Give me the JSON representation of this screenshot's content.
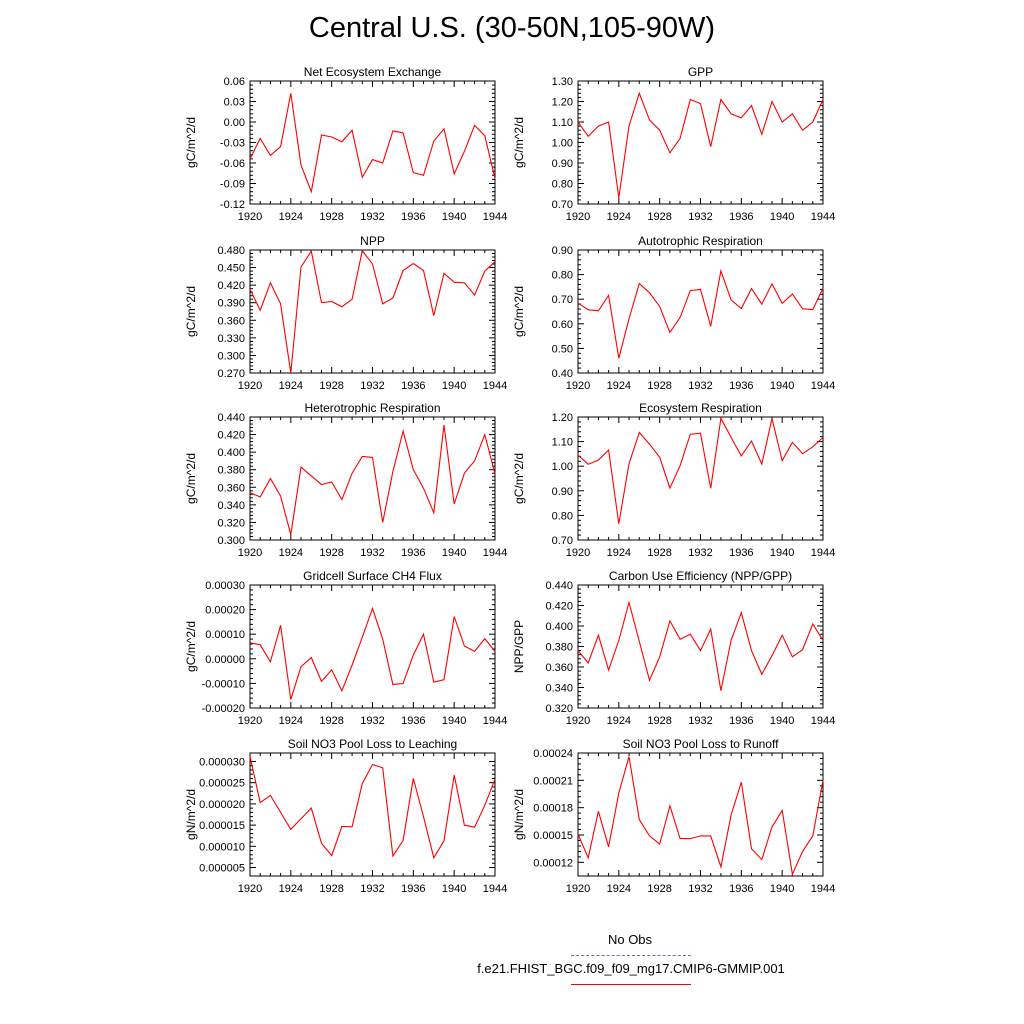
{
  "title": "Central U.S. (30-50N,105-90W)",
  "colors": {
    "series": "#ff0000",
    "obs": "#6666dd",
    "axis": "#000000"
  },
  "legend": {
    "obs_label": "No Obs",
    "model_label": "f.e21.FHIST_BGC.f09_f09_mg17.CMIP6-GMMIP.001"
  },
  "chart_data": [
    {
      "type": "line",
      "title": "Net Ecosystem Exchange",
      "xlabel": "",
      "ylabel": "gC/m^2/d",
      "xlim": [
        1920,
        1944
      ],
      "ylim": [
        -0.12,
        0.06
      ],
      "xticks": [
        "1920",
        "1924",
        "1928",
        "1932",
        "1936",
        "1940",
        "1944"
      ],
      "yticks": [
        "0.06",
        "0.03",
        "0.00",
        "-0.03",
        "-0.06",
        "-0.09",
        "-0.12"
      ],
      "x": [
        1920,
        1921,
        1922,
        1923,
        1924,
        1925,
        1926,
        1927,
        1928,
        1929,
        1930,
        1931,
        1932,
        1933,
        1934,
        1935,
        1936,
        1937,
        1938,
        1939,
        1940,
        1941,
        1942,
        1943,
        1944
      ],
      "series": [
        {
          "values": [
            -0.054,
            -0.024,
            -0.049,
            -0.036,
            0.042,
            -0.063,
            -0.102,
            -0.019,
            -0.022,
            -0.029,
            -0.012,
            -0.081,
            -0.055,
            -0.06,
            -0.013,
            -0.016,
            -0.074,
            -0.078,
            -0.028,
            -0.01,
            -0.076,
            -0.043,
            -0.005,
            -0.02,
            -0.083
          ]
        }
      ]
    },
    {
      "type": "line",
      "title": "GPP",
      "xlabel": "",
      "ylabel": "gC/m^2/d",
      "xlim": [
        1920,
        1944
      ],
      "ylim": [
        0.7,
        1.3
      ],
      "xticks": [
        "1920",
        "1924",
        "1928",
        "1932",
        "1936",
        "1940",
        "1944"
      ],
      "yticks": [
        "1.30",
        "1.20",
        "1.10",
        "1.00",
        "0.90",
        "0.80",
        "0.70"
      ],
      "x": [
        1920,
        1921,
        1922,
        1923,
        1924,
        1925,
        1926,
        1927,
        1928,
        1929,
        1930,
        1931,
        1932,
        1933,
        1934,
        1935,
        1936,
        1937,
        1938,
        1939,
        1940,
        1941,
        1942,
        1943,
        1944
      ],
      "series": [
        {
          "values": [
            1.1,
            1.03,
            1.08,
            1.1,
            0.73,
            1.08,
            1.24,
            1.11,
            1.06,
            0.95,
            1.02,
            1.21,
            1.19,
            0.98,
            1.21,
            1.14,
            1.12,
            1.18,
            1.04,
            1.2,
            1.1,
            1.14,
            1.06,
            1.1,
            1.21
          ]
        }
      ]
    },
    {
      "type": "line",
      "title": "NPP",
      "xlabel": "",
      "ylabel": "gC/m^2/d",
      "xlim": [
        1920,
        1944
      ],
      "ylim": [
        0.27,
        0.48
      ],
      "xticks": [
        "1920",
        "1924",
        "1928",
        "1932",
        "1936",
        "1940",
        "1944"
      ],
      "yticks": [
        "0.480",
        "0.450",
        "0.420",
        "0.390",
        "0.360",
        "0.330",
        "0.300",
        "0.270"
      ],
      "x": [
        1920,
        1921,
        1922,
        1923,
        1924,
        1925,
        1926,
        1927,
        1928,
        1929,
        1930,
        1931,
        1932,
        1933,
        1934,
        1935,
        1936,
        1937,
        1938,
        1939,
        1940,
        1941,
        1942,
        1943,
        1944
      ],
      "series": [
        {
          "values": [
            0.413,
            0.377,
            0.424,
            0.388,
            0.27,
            0.451,
            0.478,
            0.39,
            0.392,
            0.383,
            0.396,
            0.479,
            0.456,
            0.388,
            0.398,
            0.445,
            0.457,
            0.445,
            0.368,
            0.44,
            0.425,
            0.424,
            0.403,
            0.444,
            0.46
          ]
        }
      ]
    },
    {
      "type": "line",
      "title": "Autotrophic Respiration",
      "xlabel": "",
      "ylabel": "gC/m^2/d",
      "xlim": [
        1920,
        1944
      ],
      "ylim": [
        0.4,
        0.9
      ],
      "xticks": [
        "1920",
        "1924",
        "1928",
        "1932",
        "1936",
        "1940",
        "1944"
      ],
      "yticks": [
        "0.90",
        "0.80",
        "0.70",
        "0.60",
        "0.50",
        "0.40"
      ],
      "x": [
        1920,
        1921,
        1922,
        1923,
        1924,
        1925,
        1926,
        1927,
        1928,
        1929,
        1930,
        1931,
        1932,
        1933,
        1934,
        1935,
        1936,
        1937,
        1938,
        1939,
        1940,
        1941,
        1942,
        1943,
        1944
      ],
      "series": [
        {
          "values": [
            0.685,
            0.657,
            0.653,
            0.716,
            0.46,
            0.62,
            0.764,
            0.726,
            0.67,
            0.565,
            0.626,
            0.735,
            0.74,
            0.59,
            0.815,
            0.697,
            0.662,
            0.743,
            0.68,
            0.762,
            0.683,
            0.721,
            0.661,
            0.658,
            0.745
          ]
        }
      ]
    },
    {
      "type": "line",
      "title": "Heterotrophic Respiration",
      "xlabel": "",
      "ylabel": "gC/m^2/d",
      "xlim": [
        1920,
        1944
      ],
      "ylim": [
        0.3,
        0.44
      ],
      "xticks": [
        "1920",
        "1924",
        "1928",
        "1932",
        "1936",
        "1940",
        "1944"
      ],
      "yticks": [
        "0.440",
        "0.420",
        "0.400",
        "0.380",
        "0.360",
        "0.340",
        "0.320",
        "0.300"
      ],
      "x": [
        1920,
        1921,
        1922,
        1923,
        1924,
        1925,
        1926,
        1927,
        1928,
        1929,
        1930,
        1931,
        1932,
        1933,
        1934,
        1935,
        1936,
        1937,
        1938,
        1939,
        1940,
        1941,
        1942,
        1943,
        1944
      ],
      "series": [
        {
          "values": [
            0.354,
            0.349,
            0.37,
            0.35,
            0.306,
            0.383,
            0.373,
            0.363,
            0.366,
            0.346,
            0.376,
            0.395,
            0.394,
            0.32,
            0.378,
            0.424,
            0.38,
            0.359,
            0.331,
            0.431,
            0.341,
            0.376,
            0.39,
            0.42,
            0.375
          ]
        }
      ]
    },
    {
      "type": "line",
      "title": "Ecosystem Respiration",
      "xlabel": "",
      "ylabel": "gC/m^2/d",
      "xlim": [
        1920,
        1944
      ],
      "ylim": [
        0.7,
        1.2
      ],
      "xticks": [
        "1920",
        "1924",
        "1928",
        "1932",
        "1936",
        "1940",
        "1944"
      ],
      "yticks": [
        "1.20",
        "1.10",
        "1.00",
        "0.90",
        "0.80",
        "0.70"
      ],
      "x": [
        1920,
        1921,
        1922,
        1923,
        1924,
        1925,
        1926,
        1927,
        1928,
        1929,
        1930,
        1931,
        1932,
        1933,
        1934,
        1935,
        1936,
        1937,
        1938,
        1939,
        1940,
        1941,
        1942,
        1943,
        1944
      ],
      "series": [
        {
          "values": [
            1.045,
            1.008,
            1.025,
            1.066,
            0.766,
            1.01,
            1.137,
            1.09,
            1.036,
            0.911,
            1.002,
            1.13,
            1.134,
            0.91,
            1.195,
            1.117,
            1.042,
            1.102,
            1.009,
            1.194,
            1.022,
            1.097,
            1.051,
            1.079,
            1.117
          ]
        }
      ]
    },
    {
      "type": "line",
      "title": "Gridcell Surface CH4 Flux",
      "xlabel": "",
      "ylabel": "gC/m^2/d",
      "xlim": [
        1920,
        1944
      ],
      "ylim": [
        -0.0002,
        0.0003
      ],
      "xticks": [
        "1920",
        "1924",
        "1928",
        "1932",
        "1936",
        "1940",
        "1944"
      ],
      "yticks": [
        "0.00030",
        "0.00020",
        "0.00010",
        "0.00000",
        "-0.00010",
        "-0.00020"
      ],
      "x": [
        1920,
        1921,
        1922,
        1923,
        1924,
        1925,
        1926,
        1927,
        1928,
        1929,
        1930,
        1931,
        1932,
        1933,
        1934,
        1935,
        1936,
        1937,
        1938,
        1939,
        1940,
        1941,
        1942,
        1943,
        1944
      ],
      "series": [
        {
          "values": [
            6.5e-05,
            5.7e-05,
            -1.2e-05,
            0.000136,
            -0.000165,
            -3.2e-05,
            5e-06,
            -9.2e-05,
            -4.5e-05,
            -0.00013,
            -2.5e-05,
            8.8e-05,
            0.000205,
            8e-05,
            -0.000105,
            -0.0001,
            1.5e-05,
            0.0001,
            -9.5e-05,
            -8.5e-05,
            0.000172,
            5.2e-05,
            3e-05,
            8.2e-05,
            3e-05
          ]
        }
      ]
    },
    {
      "type": "line",
      "title": "Carbon Use Efficiency (NPP/GPP)",
      "xlabel": "",
      "ylabel": "NPP/GPP",
      "xlim": [
        1920,
        1944
      ],
      "ylim": [
        0.32,
        0.44
      ],
      "xticks": [
        "1920",
        "1924",
        "1928",
        "1932",
        "1936",
        "1940",
        "1944"
      ],
      "yticks": [
        "0.440",
        "0.420",
        "0.400",
        "0.380",
        "0.360",
        "0.340",
        "0.320"
      ],
      "x": [
        1920,
        1921,
        1922,
        1923,
        1924,
        1925,
        1926,
        1927,
        1928,
        1929,
        1930,
        1931,
        1932,
        1933,
        1934,
        1935,
        1936,
        1937,
        1938,
        1939,
        1940,
        1941,
        1942,
        1943,
        1944
      ],
      "series": [
        {
          "values": [
            0.376,
            0.364,
            0.391,
            0.357,
            0.386,
            0.423,
            0.385,
            0.347,
            0.37,
            0.405,
            0.387,
            0.392,
            0.376,
            0.397,
            0.337,
            0.386,
            0.413,
            0.376,
            0.353,
            0.371,
            0.391,
            0.37,
            0.377,
            0.402,
            0.386
          ]
        }
      ]
    },
    {
      "type": "line",
      "title": "Soil NO3 Pool Loss to Leaching",
      "xlabel": "",
      "ylabel": "gN/m^2/d",
      "xlim": [
        1920,
        1944
      ],
      "ylim": [
        3e-06,
        3.2e-05
      ],
      "xticks": [
        "1920",
        "1924",
        "1928",
        "1932",
        "1936",
        "1940",
        "1944"
      ],
      "yticks": [
        "0.000030",
        "0.000025",
        "0.000020",
        "0.000015",
        "0.000010",
        "0.000005"
      ],
      "x": [
        1920,
        1921,
        1922,
        1923,
        1924,
        1925,
        1926,
        1927,
        1928,
        1929,
        1930,
        1931,
        1932,
        1933,
        1934,
        1935,
        1936,
        1937,
        1938,
        1939,
        1940,
        1941,
        1942,
        1943,
        1944
      ],
      "series": [
        {
          "values": [
            3.12e-05,
            2.03e-05,
            2.2e-05,
            1.8e-05,
            1.4e-05,
            1.65e-05,
            1.9e-05,
            1.07e-05,
            7.8e-06,
            1.47e-05,
            1.46e-05,
            2.48e-05,
            2.93e-05,
            2.85e-05,
            7.7e-06,
            1.14e-05,
            2.6e-05,
            1.7e-05,
            7.3e-06,
            1.13e-05,
            2.68e-05,
            1.5e-05,
            1.45e-05,
            1.97e-05,
            2.58e-05
          ]
        }
      ]
    },
    {
      "type": "line",
      "title": "Soil NO3 Pool Loss to Runoff",
      "xlabel": "",
      "ylabel": "gN/m^2/d",
      "xlim": [
        1920,
        1944
      ],
      "ylim": [
        0.000105,
        0.00024
      ],
      "xticks": [
        "1920",
        "1924",
        "1928",
        "1932",
        "1936",
        "1940",
        "1944"
      ],
      "yticks": [
        "0.00024",
        "0.00021",
        "0.00018",
        "0.00015",
        "0.00012"
      ],
      "x": [
        1920,
        1921,
        1922,
        1923,
        1924,
        1925,
        1926,
        1927,
        1928,
        1929,
        1930,
        1931,
        1932,
        1933,
        1934,
        1935,
        1936,
        1937,
        1938,
        1939,
        1940,
        1941,
        1942,
        1943,
        1944
      ],
      "series": [
        {
          "values": [
            0.000151,
            0.000125,
            0.000176,
            0.000137,
            0.000196,
            0.000236,
            0.000167,
            0.000149,
            0.00014,
            0.000182,
            0.000146,
            0.000146,
            0.000149,
            0.000149,
            0.000115,
            0.000172,
            0.000208,
            0.000135,
            0.000123,
            0.000159,
            0.000177,
            0.000107,
            0.000132,
            0.000149,
            0.00021
          ]
        }
      ]
    }
  ]
}
